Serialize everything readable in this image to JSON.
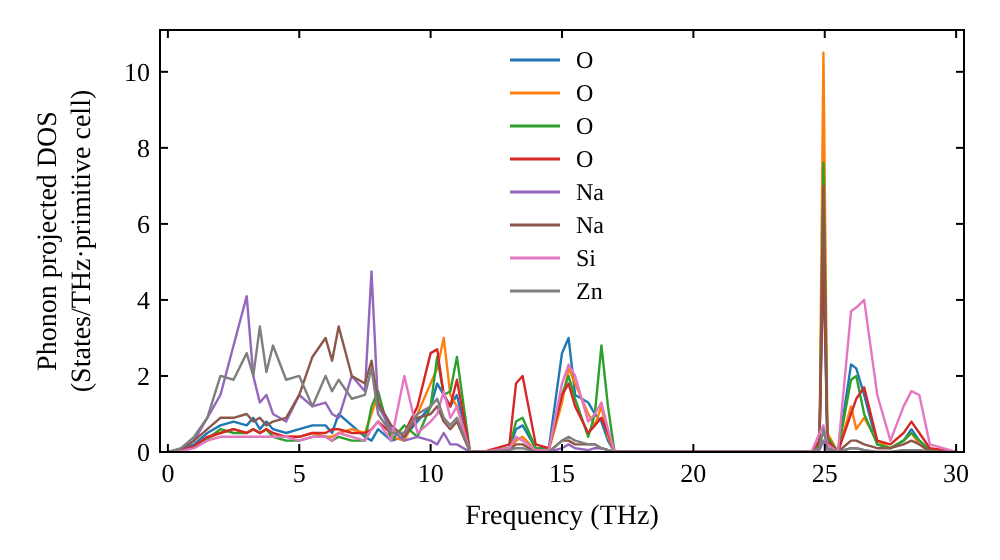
{
  "chart_data": {
    "type": "line",
    "xlabel": "Frequency (THz)",
    "ylabel": "Phonon projected DOS\n(States/THz·primitive cell)",
    "x": [
      0,
      0.5,
      1,
      1.5,
      2,
      2.5,
      3,
      3.25,
      3.5,
      3.75,
      4,
      4.5,
      5,
      5.5,
      6,
      6.25,
      6.5,
      7,
      7.5,
      7.75,
      8,
      8.5,
      9,
      9.5,
      10,
      10.25,
      10.5,
      10.75,
      11,
      11.5,
      12,
      13,
      13.25,
      13.5,
      14,
      14.5,
      15,
      15.25,
      15.5,
      16,
      16.25,
      16.5,
      16.75,
      17,
      18,
      24,
      24.5,
      24.8,
      24.95,
      25.1,
      25.5,
      26,
      26.2,
      26.5,
      27,
      27.5,
      28,
      28.3,
      28.6,
      29,
      30
    ],
    "series": [
      {
        "name": "O",
        "color": "#1f77b4",
        "values": [
          0,
          0.05,
          0.2,
          0.5,
          0.7,
          0.8,
          0.7,
          0.9,
          0.6,
          0.8,
          0.6,
          0.5,
          0.6,
          0.7,
          0.7,
          0.5,
          1.0,
          0.7,
          0.4,
          0.3,
          0.6,
          0.3,
          0.4,
          0.8,
          1.2,
          1.8,
          1.5,
          1.2,
          1.5,
          0,
          0,
          0.1,
          0.6,
          0.7,
          0.1,
          0.1,
          2.6,
          3.0,
          1.5,
          1.3,
          1.0,
          0.8,
          0.3,
          0,
          0,
          0,
          0,
          0.3,
          5.0,
          0.3,
          0,
          2.3,
          2.2,
          1.5,
          0.2,
          0.1,
          0.3,
          0.6,
          0.3,
          0.05,
          0
        ]
      },
      {
        "name": "O",
        "color": "#ff7f0e",
        "values": [
          null,
          null,
          0.15,
          0.35,
          0.5,
          0.6,
          0.5,
          0.6,
          0.5,
          0.6,
          0.4,
          0.4,
          0.4,
          0.5,
          0.4,
          0.4,
          0.5,
          0.6,
          0.5,
          1.0,
          1.5,
          0.4,
          0.3,
          1.0,
          1.8,
          2.2,
          3.0,
          1.5,
          1.2,
          0,
          0,
          0.05,
          0.3,
          0.4,
          0.05,
          0.05,
          1.3,
          2.2,
          1.8,
          1.0,
          0.7,
          1.2,
          0.4,
          0,
          0,
          0,
          0,
          0.2,
          10.5,
          0.5,
          0,
          1.2,
          0.6,
          0.9,
          0.3,
          0.1,
          0.3,
          0.5,
          0.2,
          0.05,
          0
        ]
      },
      {
        "name": "O",
        "color": "#2ca02c",
        "values": [
          null,
          null,
          0.15,
          0.35,
          0.6,
          0.5,
          0.5,
          0.6,
          0.5,
          0.6,
          0.4,
          0.3,
          0.3,
          0.4,
          0.4,
          0.3,
          0.4,
          0.3,
          0.3,
          1.2,
          1.6,
          0.3,
          0.7,
          0.4,
          1.2,
          2.5,
          1.5,
          1.6,
          2.5,
          0,
          0,
          0.1,
          0.8,
          0.9,
          0.1,
          0.1,
          1.5,
          2.0,
          1.4,
          0.4,
          1.0,
          2.8,
          1.2,
          0,
          0,
          0,
          0,
          0.2,
          7.6,
          0.4,
          0,
          1.9,
          2.0,
          1.0,
          0.2,
          0.1,
          0.3,
          0.5,
          0.3,
          0.05,
          0
        ]
      },
      {
        "name": "O",
        "color": "#d62728",
        "values": [
          0,
          0.03,
          0.15,
          0.4,
          0.5,
          0.6,
          0.5,
          0.6,
          0.5,
          0.6,
          0.5,
          0.4,
          0.4,
          0.5,
          0.5,
          0.6,
          0.6,
          0.5,
          0.5,
          0.6,
          0.8,
          0.5,
          0.5,
          1.2,
          2.6,
          2.7,
          1.5,
          1.2,
          1.9,
          0,
          0,
          0.2,
          1.8,
          2.0,
          0.2,
          0.1,
          1.5,
          1.8,
          1.2,
          0.5,
          0.7,
          0.9,
          0.5,
          0,
          0,
          0,
          0,
          0.3,
          5.5,
          0.3,
          0,
          1.0,
          1.4,
          1.7,
          0.3,
          0.2,
          0.5,
          0.8,
          0.5,
          0.1,
          0
        ]
      },
      {
        "name": "Na",
        "color": "#9467bd",
        "values": [
          0,
          0.05,
          0.3,
          0.9,
          1.5,
          2.8,
          4.1,
          2.0,
          1.3,
          1.5,
          1.0,
          0.8,
          1.5,
          1.2,
          1.3,
          1.0,
          0.9,
          2.0,
          1.6,
          4.75,
          1.2,
          0.6,
          0.3,
          0.4,
          0.3,
          0.2,
          0.5,
          0.2,
          0.2,
          0,
          0,
          0,
          0,
          0,
          0,
          0,
          0.1,
          0.2,
          0.1,
          0.05,
          0.1,
          0.1,
          0.05,
          0,
          0,
          0,
          0,
          0.05,
          0.3,
          0.05,
          0,
          0.1,
          0.1,
          0.05,
          0,
          0,
          0.05,
          0.05,
          0.05,
          0,
          0
        ]
      },
      {
        "name": "Na",
        "color": "#8c564b",
        "values": [
          0,
          0.05,
          0.3,
          0.6,
          0.9,
          0.9,
          1.0,
          0.8,
          0.9,
          0.7,
          0.8,
          0.9,
          1.5,
          2.5,
          3.0,
          2.4,
          3.3,
          2.0,
          1.8,
          2.4,
          1.3,
          0.7,
          0.4,
          0.9,
          1.0,
          1.2,
          0.8,
          0.6,
          0.8,
          0,
          0,
          0.05,
          0.2,
          0.2,
          0,
          0,
          0.3,
          0.3,
          0.2,
          0.2,
          0.2,
          0.1,
          0.05,
          0,
          0,
          0,
          0,
          0.1,
          7.0,
          0.2,
          0,
          0.3,
          0.3,
          0.2,
          0.1,
          0.1,
          0.2,
          0.3,
          0.2,
          0,
          0
        ]
      },
      {
        "name": "Si",
        "color": "#e377c2",
        "values": [
          0,
          0.02,
          0.1,
          0.3,
          0.4,
          0.4,
          0.4,
          0.4,
          0.4,
          0.4,
          0.4,
          0.4,
          0.3,
          0.4,
          0.4,
          0.3,
          0.5,
          0.4,
          0.3,
          0.6,
          0.8,
          0.3,
          2.0,
          0.5,
          0.8,
          1.0,
          1.6,
          0.9,
          1.2,
          0,
          0,
          0.1,
          0.4,
          0.3,
          0.05,
          0.05,
          1.8,
          2.3,
          2.0,
          0.8,
          1.0,
          1.3,
          0.6,
          0,
          0,
          0,
          0,
          0.5,
          0.7,
          0.2,
          0,
          3.7,
          3.8,
          4.0,
          1.5,
          0.3,
          1.2,
          1.6,
          1.5,
          0.2,
          0
        ]
      },
      {
        "name": "Zn",
        "color": "#7f7f7f",
        "values": [
          0,
          0.1,
          0.4,
          0.9,
          2.0,
          1.9,
          2.6,
          2.0,
          3.3,
          2.1,
          2.8,
          1.9,
          2.0,
          1.2,
          2.0,
          1.6,
          1.9,
          1.4,
          1.5,
          2.2,
          1.0,
          0.5,
          0.5,
          1.0,
          1.2,
          1.4,
          0.9,
          0.7,
          0.9,
          0,
          0,
          0.05,
          0.1,
          0.1,
          0,
          0,
          0.3,
          0.4,
          0.3,
          0.2,
          0.2,
          0.1,
          0.05,
          0,
          0,
          0,
          0,
          0.1,
          0.6,
          0.1,
          0,
          0.1,
          0.1,
          0.05,
          0,
          0,
          0.05,
          0.05,
          0.05,
          0,
          0
        ]
      }
    ],
    "xlim": [
      -0.3,
      30.3
    ],
    "ylim": [
      0,
      11.1
    ],
    "xticks": [
      0,
      5,
      10,
      15,
      20,
      25,
      30
    ],
    "yticks": [
      0,
      2,
      4,
      6,
      8,
      10
    ],
    "legend": "top",
    "grid": false
  }
}
